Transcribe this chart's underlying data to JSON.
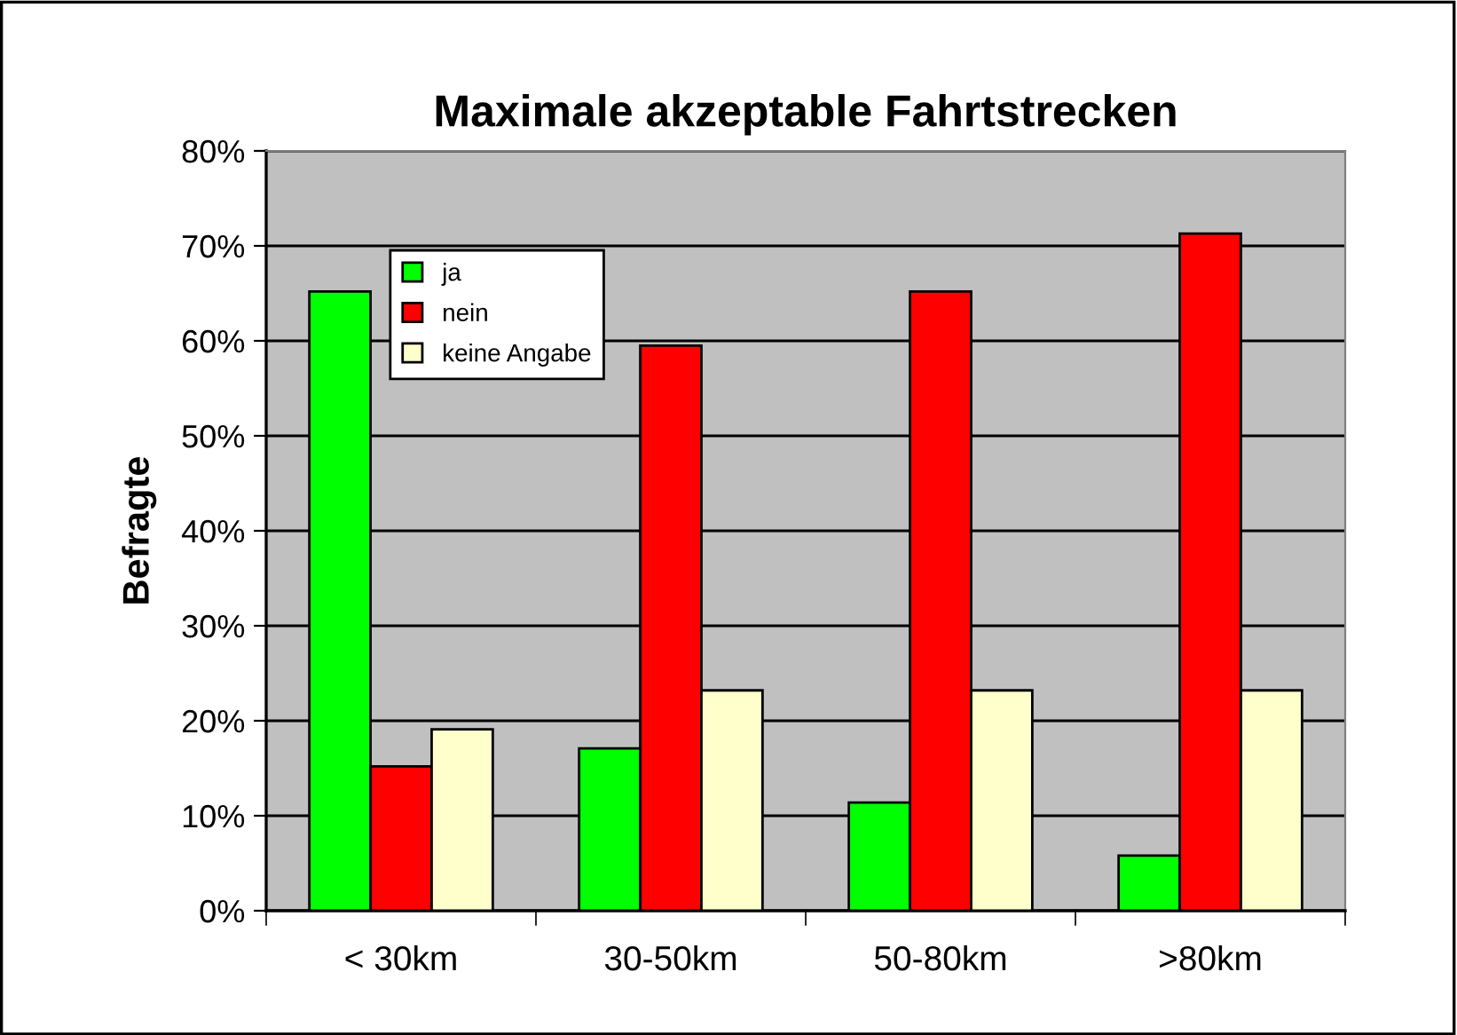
{
  "chart_data": {
    "type": "bar",
    "title": "Maximale akzeptable Fahrtstrecken",
    "ylabel": "Befragte",
    "categories": [
      "< 30km",
      "30-50km",
      "50-80km",
      ">80km"
    ],
    "series": [
      {
        "name": "ja",
        "color": "#00ff00",
        "values": [
          65.2,
          17.1,
          11.4,
          5.8
        ]
      },
      {
        "name": "nein",
        "color": "#ff0000",
        "values": [
          15.2,
          59.5,
          65.2,
          71.3
        ]
      },
      {
        "name": "keine Angabe",
        "color": "#ffffcc",
        "values": [
          19.1,
          23.2,
          23.2,
          23.2
        ]
      }
    ],
    "ylim": [
      0,
      80
    ],
    "yticks": [
      {
        "value": 0,
        "label": "0%"
      },
      {
        "value": 10,
        "label": "10%"
      },
      {
        "value": 20,
        "label": "20%"
      },
      {
        "value": 30,
        "label": "30%"
      },
      {
        "value": 40,
        "label": "40%"
      },
      {
        "value": 50,
        "label": "50%"
      },
      {
        "value": 60,
        "label": "60%"
      },
      {
        "value": 70,
        "label": "70%"
      },
      {
        "value": 80,
        "label": "80%"
      }
    ],
    "grid": "y",
    "legend": "top left"
  }
}
